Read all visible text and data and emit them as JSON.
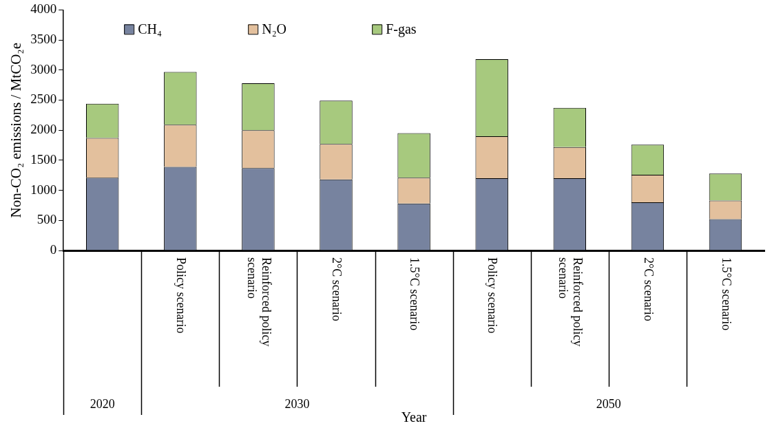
{
  "chart_data": {
    "type": "bar",
    "stacked": true,
    "categories": [
      null,
      "Policy scenario",
      "Reinforced policy scenario",
      "2°C scenario",
      "1.5°C scenario",
      "Policy scenario",
      "Reinforced policy scenario",
      "2°C scenario",
      "1.5°C scenario"
    ],
    "series": [
      {
        "name": "CH₄",
        "color": "#77839f",
        "values": [
          1210,
          1390,
          1370,
          1180,
          780,
          1200,
          1200,
          800,
          520
        ]
      },
      {
        "name": "N₂O",
        "color": "#e3c09d",
        "values": [
          660,
          700,
          630,
          590,
          430,
          700,
          520,
          460,
          310
        ]
      },
      {
        "name": "F-gas",
        "color": "#a7c97e",
        "values": [
          570,
          880,
          780,
          720,
          740,
          1280,
          650,
          500,
          450
        ]
      }
    ],
    "xlabel": "Year",
    "ylabel": "Non-CO₂ emissions / MtCO₂e",
    "ylim": [
      0,
      4000
    ],
    "yticks": [
      0,
      500,
      1000,
      1500,
      2000,
      2500,
      3000,
      3500,
      4000
    ],
    "grid": false,
    "legend": "top",
    "annotations": [
      "2020",
      "2030",
      "2050"
    ]
  }
}
